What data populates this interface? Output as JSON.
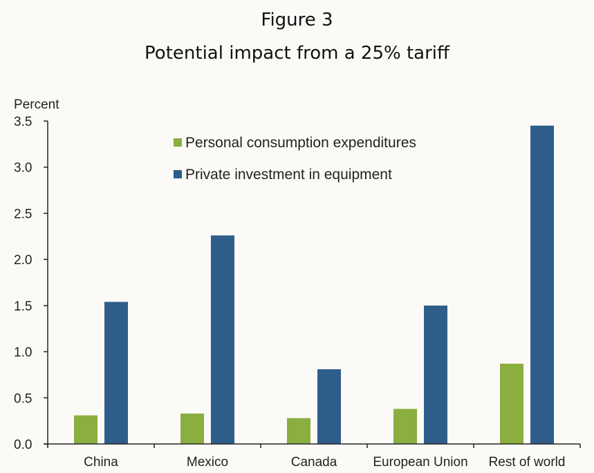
{
  "figure": {
    "label": "Figure 3",
    "title": "Potential impact from a 25% tariff"
  },
  "chart_data": {
    "type": "bar",
    "title": "Potential impact from a 25% tariff",
    "xlabel": "",
    "ylabel": "Percent",
    "ylim": [
      0,
      3.5
    ],
    "yticks": [
      "0.0",
      "0.5",
      "1.0",
      "1.5",
      "2.0",
      "2.5",
      "3.0",
      "3.5"
    ],
    "categories": [
      "China",
      "Mexico",
      "Canada",
      "European Union",
      "Rest of world"
    ],
    "series": [
      {
        "name": "Personal consumption expenditures",
        "color": "#8aae40",
        "values": [
          0.31,
          0.33,
          0.28,
          0.38,
          0.87
        ]
      },
      {
        "name": "Private investment in equipment",
        "color": "#2e5d8a",
        "values": [
          1.54,
          2.26,
          0.81,
          1.5,
          3.45
        ]
      }
    ],
    "legend_position": "top-center",
    "grid": false
  }
}
